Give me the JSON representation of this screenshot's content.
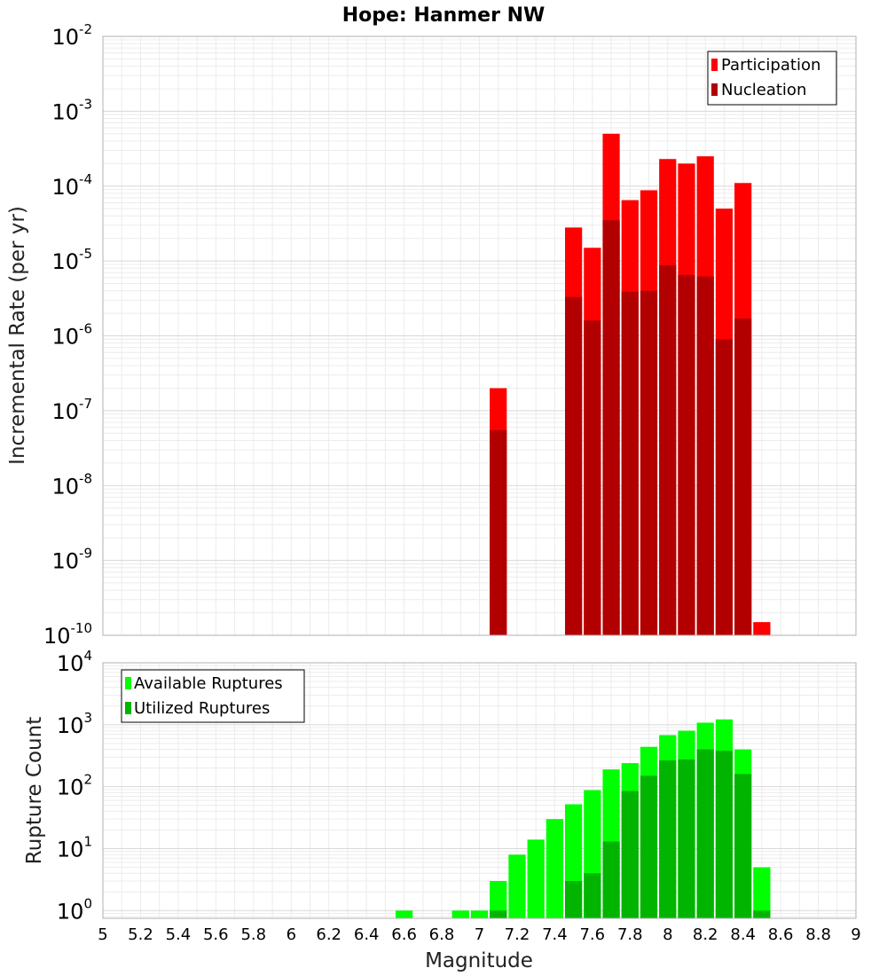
{
  "title": "Hope: Hanmer NW",
  "xlabel": "Magnitude",
  "colors": {
    "participation": "#ff0000",
    "nucleation": "#b20000",
    "available": "#00ff00",
    "utilized": "#00b400"
  },
  "chart_data": [
    {
      "type": "bar",
      "name": "rate-panel",
      "title": "Hope: Hanmer NW",
      "xlabel": "Magnitude",
      "ylabel": "Incremental Rate (per yr)",
      "yscale": "log",
      "ylim": [
        1e-10,
        0.01
      ],
      "xlim": [
        5,
        9
      ],
      "grid": true,
      "legend_position": "top-right",
      "yticks": [
        {
          "base": "10",
          "exp": "-10"
        },
        {
          "base": "10",
          "exp": "-9"
        },
        {
          "base": "10",
          "exp": "-8"
        },
        {
          "base": "10",
          "exp": "-7"
        },
        {
          "base": "10",
          "exp": "-6"
        },
        {
          "base": "10",
          "exp": "-5"
        },
        {
          "base": "10",
          "exp": "-4"
        },
        {
          "base": "10",
          "exp": "-3"
        },
        {
          "base": "10",
          "exp": "-2"
        }
      ],
      "series": [
        {
          "name": "Participation",
          "color": "#ff0000",
          "x": [
            7.1,
            7.5,
            7.6,
            7.7,
            7.8,
            7.9,
            8.0,
            8.1,
            8.2,
            8.3,
            8.4,
            8.5
          ],
          "values": [
            2e-07,
            2.8e-05,
            1.5e-05,
            0.0005,
            6.5e-05,
            8.8e-05,
            0.00023,
            0.0002,
            0.00025,
            5e-05,
            0.00011,
            1.5e-10
          ]
        },
        {
          "name": "Nucleation",
          "color": "#b20000",
          "x": [
            7.1,
            7.5,
            7.6,
            7.7,
            7.8,
            7.9,
            8.0,
            8.1,
            8.2,
            8.3,
            8.4
          ],
          "values": [
            5.5e-08,
            3.3e-06,
            1.6e-06,
            3.5e-05,
            3.9e-06,
            4e-06,
            8.8e-06,
            6.5e-06,
            6.2e-06,
            9e-07,
            1.7e-06
          ]
        }
      ]
    },
    {
      "type": "bar",
      "name": "count-panel",
      "xlabel": "Magnitude",
      "ylabel": "Rupture Count",
      "yscale": "log",
      "ylim": [
        0.75,
        10000
      ],
      "xlim": [
        5,
        9
      ],
      "grid": true,
      "legend_position": "top-left",
      "yticks": [
        {
          "base": "10",
          "exp": "0"
        },
        {
          "base": "10",
          "exp": "1"
        },
        {
          "base": "10",
          "exp": "2"
        },
        {
          "base": "10",
          "exp": "3"
        },
        {
          "base": "10",
          "exp": "4"
        }
      ],
      "xticks": [
        "5",
        "5.2",
        "5.4",
        "5.6",
        "5.8",
        "6",
        "6.2",
        "6.4",
        "6.6",
        "6.8",
        "7",
        "7.2",
        "7.4",
        "7.6",
        "7.8",
        "8",
        "8.2",
        "8.4",
        "8.6",
        "8.8",
        "9"
      ],
      "series": [
        {
          "name": "Available Ruptures",
          "color": "#00ff00",
          "x": [
            6.6,
            6.9,
            7.0,
            7.1,
            7.2,
            7.3,
            7.4,
            7.5,
            7.6,
            7.7,
            7.8,
            7.9,
            8.0,
            8.1,
            8.2,
            8.3,
            8.4,
            8.5
          ],
          "values": [
            1,
            1,
            1,
            3,
            8,
            14,
            30,
            52,
            88,
            190,
            240,
            440,
            680,
            800,
            1080,
            1220,
            400,
            5
          ]
        },
        {
          "name": "Utilized Ruptures",
          "color": "#00b400",
          "x": [
            7.1,
            7.5,
            7.6,
            7.7,
            7.8,
            7.9,
            8.0,
            8.1,
            8.2,
            8.3,
            8.4,
            8.5
          ],
          "values": [
            1,
            3,
            4,
            13,
            85,
            150,
            265,
            275,
            400,
            380,
            160,
            1
          ]
        }
      ]
    }
  ]
}
